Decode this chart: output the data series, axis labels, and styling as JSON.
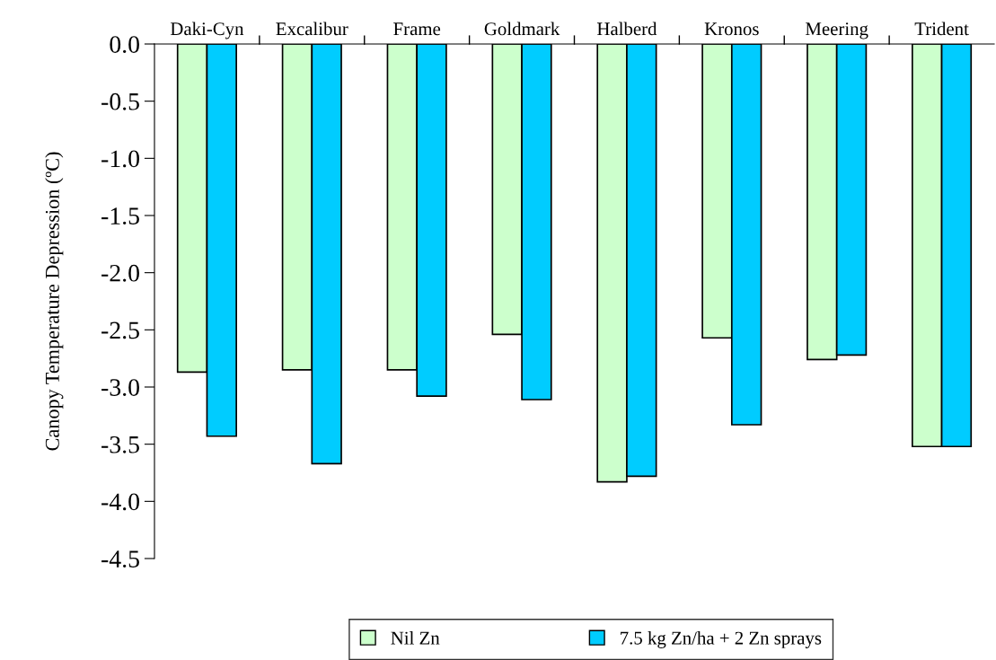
{
  "chart_data": {
    "type": "bar",
    "ylabel": "Canopy Temperature Depression (ºC)",
    "categories": [
      "Daki-Cyn",
      "Excalibur",
      "Frame",
      "Goldmark",
      "Halberd",
      "Kronos",
      "Meering",
      "Trident"
    ],
    "series": [
      {
        "name": "Nil Zn",
        "color": "#ccffcc",
        "values": [
          -2.87,
          -2.85,
          -2.85,
          -2.54,
          -3.83,
          -2.57,
          -2.76,
          -3.52
        ]
      },
      {
        "name": "7.5 kg Zn/ha + 2 Zn sprays",
        "color": "#00ccff",
        "values": [
          -3.43,
          -3.67,
          -3.08,
          -3.11,
          -3.78,
          -3.33,
          -2.72,
          -3.52
        ]
      }
    ],
    "ylim": [
      -4.5,
      0
    ],
    "yticks": [
      {
        "value": 0,
        "label": "0.0"
      },
      {
        "value": -0.5,
        "label": "-0.5"
      },
      {
        "value": -1,
        "label": "-1.0"
      },
      {
        "value": -1.5,
        "label": "-1.5"
      },
      {
        "value": -2,
        "label": "-2.0"
      },
      {
        "value": -2.5,
        "label": "-2.5"
      },
      {
        "value": -3,
        "label": "-3.0"
      },
      {
        "value": -3.5,
        "label": "-3.5"
      },
      {
        "value": -4,
        "label": "-4.0"
      },
      {
        "value": -4.5,
        "label": "-4.5"
      }
    ],
    "grid": false,
    "legend": "bottom"
  }
}
